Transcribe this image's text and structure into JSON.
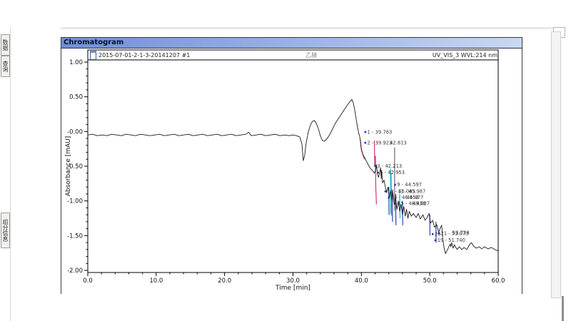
{
  "panel": {
    "title": "Chromatogram"
  },
  "sidebar": {
    "tabs": [
      {
        "label": "数据"
      },
      {
        "label": "查询"
      },
      {
        "label": "组分信息"
      }
    ]
  },
  "chart_header": {
    "injection": "2015-07-01-2-1-3-20141207 #1",
    "center_label": "乙腈",
    "channel": "UV_VIS_3 WVL:214 nm"
  },
  "chart_data": {
    "type": "line",
    "title": "Chromatogram",
    "xlabel": "Time [min]",
    "ylabel": "Absorbance [mAU]",
    "xlim": [
      0,
      60
    ],
    "ylim": [
      -2.0,
      1.0
    ],
    "grid": false,
    "x_ticks": [
      0,
      10,
      20,
      30,
      40,
      50,
      60
    ],
    "x_tick_labels": [
      "0.0",
      "10.0",
      "20.0",
      "30.0",
      "40.0",
      "50.0",
      "60.0"
    ],
    "x_minor_step": 2,
    "y_ticks": [
      1.0,
      0.5,
      0.0,
      -0.5,
      -1.0,
      -1.5,
      -2.0
    ],
    "y_tick_labels": [
      "1.00",
      "0.50",
      "-0.00",
      "-0.50",
      "-1.00",
      "-1.50",
      "-2.00"
    ],
    "y_minor_step": 0.1,
    "series": [
      {
        "name": "UV_VIS_3 WVL:214 nm",
        "color": "#1b1b1b",
        "points": [
          [
            0,
            -0.05
          ],
          [
            0.7,
            -0.04
          ],
          [
            1.4,
            -0.06
          ],
          [
            2.1,
            -0.05
          ],
          [
            2.8,
            -0.06
          ],
          [
            3.5,
            -0.04
          ],
          [
            4.2,
            -0.05
          ],
          [
            4.9,
            -0.06
          ],
          [
            5.6,
            -0.04
          ],
          [
            6.3,
            -0.05
          ],
          [
            7.0,
            -0.06
          ],
          [
            7.7,
            -0.04
          ],
          [
            8.4,
            -0.05
          ],
          [
            9.1,
            -0.06
          ],
          [
            9.8,
            -0.05
          ],
          [
            10.5,
            -0.04
          ],
          [
            11.2,
            -0.06
          ],
          [
            11.9,
            -0.05
          ],
          [
            12.6,
            -0.04
          ],
          [
            13.3,
            -0.06
          ],
          [
            14.0,
            -0.05
          ],
          [
            14.7,
            -0.04
          ],
          [
            15.4,
            -0.06
          ],
          [
            16.1,
            -0.05
          ],
          [
            16.8,
            -0.04
          ],
          [
            17.5,
            -0.06
          ],
          [
            18.2,
            -0.05
          ],
          [
            18.9,
            -0.04
          ],
          [
            19.6,
            -0.06
          ],
          [
            20.3,
            -0.05
          ],
          [
            21.0,
            -0.04
          ],
          [
            21.7,
            -0.06
          ],
          [
            22.4,
            -0.05
          ],
          [
            23.1,
            -0.04
          ],
          [
            23.5,
            -0.01
          ],
          [
            23.9,
            -0.06
          ],
          [
            24.6,
            -0.05
          ],
          [
            25.3,
            -0.04
          ],
          [
            26.0,
            -0.06
          ],
          [
            26.7,
            -0.05
          ],
          [
            27.4,
            -0.04
          ],
          [
            28.1,
            -0.06
          ],
          [
            28.8,
            -0.05
          ],
          [
            29.4,
            -0.06
          ],
          [
            30.0,
            -0.05
          ],
          [
            30.5,
            -0.06
          ],
          [
            31.0,
            -0.08
          ],
          [
            31.3,
            -0.18
          ],
          [
            31.5,
            -0.42
          ],
          [
            31.7,
            -0.35
          ],
          [
            31.9,
            -0.18
          ],
          [
            32.2,
            -0.02
          ],
          [
            32.5,
            0.08
          ],
          [
            32.8,
            0.14
          ],
          [
            33.1,
            0.16
          ],
          [
            33.4,
            0.12
          ],
          [
            33.7,
            0.04
          ],
          [
            34.0,
            -0.06
          ],
          [
            34.3,
            -0.13
          ],
          [
            34.6,
            -0.14
          ],
          [
            35.0,
            -0.1
          ],
          [
            35.4,
            -0.04
          ],
          [
            35.8,
            0.04
          ],
          [
            36.2,
            0.12
          ],
          [
            36.6,
            0.18
          ],
          [
            37.0,
            0.24
          ],
          [
            37.4,
            0.3
          ],
          [
            37.8,
            0.36
          ],
          [
            38.1,
            0.4
          ],
          [
            38.4,
            0.44
          ],
          [
            38.6,
            0.46
          ],
          [
            38.8,
            0.42
          ],
          [
            39.0,
            0.32
          ],
          [
            39.2,
            0.2
          ],
          [
            39.4,
            0.08
          ],
          [
            39.6,
            -0.02
          ],
          [
            39.763,
            -0.08
          ],
          [
            39.85,
            -0.14
          ],
          [
            39.923,
            -0.2
          ],
          [
            40.0,
            -0.26
          ],
          [
            40.2,
            -0.33
          ],
          [
            40.5,
            -0.38
          ],
          [
            40.8,
            -0.44
          ],
          [
            41.1,
            -0.5
          ],
          [
            41.4,
            -0.54
          ],
          [
            41.7,
            -0.57
          ],
          [
            41.9,
            -0.6
          ],
          [
            42.1,
            -0.55
          ],
          [
            42.213,
            -0.48
          ],
          [
            42.35,
            -0.62
          ],
          [
            42.5,
            -0.66
          ],
          [
            42.7,
            -0.58
          ],
          [
            42.813,
            -0.52
          ],
          [
            42.9,
            -0.68
          ],
          [
            42.953,
            -0.56
          ],
          [
            43.1,
            -0.74
          ],
          [
            43.3,
            -0.7
          ],
          [
            43.5,
            -0.8
          ],
          [
            43.7,
            -0.88
          ],
          [
            43.9,
            -0.8
          ],
          [
            44.1,
            -0.95
          ],
          [
            44.3,
            -0.85
          ],
          [
            44.5,
            -1.0
          ],
          [
            44.597,
            -0.88
          ],
          [
            44.8,
            -1.05
          ],
          [
            45.0,
            -0.95
          ],
          [
            45.2,
            -1.12
          ],
          [
            45.4,
            -1.0
          ],
          [
            45.6,
            -1.15
          ],
          [
            45.8,
            -1.05
          ],
          [
            46.0,
            -1.2
          ],
          [
            46.2,
            -1.08
          ],
          [
            46.4,
            -1.22
          ],
          [
            46.6,
            -1.12
          ],
          [
            46.8,
            -1.25
          ],
          [
            47.0,
            -1.15
          ],
          [
            47.3,
            -1.22
          ],
          [
            47.6,
            -1.18
          ],
          [
            48.0,
            -1.24
          ],
          [
            48.3,
            -1.18
          ],
          [
            48.6,
            -1.26
          ],
          [
            49.0,
            -1.2
          ],
          [
            49.3,
            -1.28
          ],
          [
            49.6,
            -1.24
          ],
          [
            49.9,
            -1.18
          ],
          [
            50.1,
            -1.32
          ],
          [
            50.4,
            -1.28
          ],
          [
            50.7,
            -1.38
          ],
          [
            51.0,
            -1.34
          ],
          [
            51.3,
            -1.45
          ],
          [
            51.5,
            -1.4
          ],
          [
            51.74,
            -1.35
          ],
          [
            51.9,
            -1.55
          ],
          [
            52.1,
            -1.68
          ],
          [
            52.3,
            -1.76
          ],
          [
            52.5,
            -1.72
          ],
          [
            52.7,
            -1.68
          ],
          [
            52.973,
            -1.62
          ],
          [
            53.073,
            -1.66
          ],
          [
            53.2,
            -1.6
          ],
          [
            53.4,
            -1.68
          ],
          [
            53.6,
            -1.63
          ],
          [
            53.734,
            -1.66
          ],
          [
            54.0,
            -1.7
          ],
          [
            54.3,
            -1.66
          ],
          [
            54.7,
            -1.7
          ],
          [
            55.0,
            -1.67
          ],
          [
            55.4,
            -1.7
          ],
          [
            55.8,
            -1.63
          ],
          [
            56.1,
            -1.6
          ],
          [
            56.4,
            -1.65
          ],
          [
            56.8,
            -1.68
          ],
          [
            57.2,
            -1.66
          ],
          [
            57.6,
            -1.69
          ],
          [
            58.0,
            -1.66
          ],
          [
            58.5,
            -1.69
          ],
          [
            59.0,
            -1.67
          ],
          [
            59.5,
            -1.7
          ],
          [
            60.0,
            -1.72
          ]
        ]
      }
    ],
    "highlight_segments": [
      {
        "color": "#e8389b",
        "points": [
          [
            39.85,
            -0.12
          ],
          [
            40.0,
            -0.26
          ],
          [
            40.2,
            -0.33
          ],
          [
            40.45,
            -0.4
          ]
        ]
      },
      {
        "color": "#d63384",
        "points": [
          [
            41.9,
            -0.13
          ],
          [
            41.95,
            -0.5
          ],
          [
            42.05,
            -0.35
          ],
          [
            42.1,
            -0.8
          ],
          [
            42.2,
            -1.05
          ]
        ]
      },
      {
        "color": "#19b8c8",
        "points": [
          [
            44.25,
            -0.54
          ],
          [
            44.3,
            -1.18
          ],
          [
            44.35,
            -0.6
          ],
          [
            44.4,
            -1.21
          ]
        ]
      },
      {
        "color": "#19b8c8",
        "points": [
          [
            45.6,
            -0.9
          ],
          [
            45.65,
            -1.25
          ]
        ]
      },
      {
        "color": "#3340b0",
        "points": [
          [
            44.0,
            -0.8
          ],
          [
            44.05,
            -1.2
          ]
        ]
      },
      {
        "color": "#3340b0",
        "points": [
          [
            44.5,
            -0.85
          ],
          [
            44.55,
            -1.3
          ]
        ]
      },
      {
        "color": "#3340b0",
        "points": [
          [
            45.0,
            -0.9
          ],
          [
            45.05,
            -1.35
          ]
        ]
      },
      {
        "color": "#3340b0",
        "points": [
          [
            46.0,
            -1.0
          ],
          [
            46.05,
            -1.35
          ]
        ]
      },
      {
        "color": "#3340b0",
        "points": [
          [
            50.0,
            -1.2
          ],
          [
            50.02,
            -1.5
          ]
        ]
      },
      {
        "color": "#3340b0",
        "points": [
          [
            50.9,
            -1.3
          ],
          [
            50.92,
            -1.6
          ]
        ]
      }
    ],
    "drop_lines": [
      {
        "t": 44.86,
        "v_from": -0.23,
        "v_to": -1.14
      }
    ],
    "peak_labels": [
      {
        "text": "1 - 39.763",
        "t": 40.85,
        "v": -0.03,
        "marker": true
      },
      {
        "text": "2 - 39.923",
        "t": 40.85,
        "v": -0.185,
        "marker": true
      },
      {
        "text": "42.813",
        "t": 44.15,
        "v": -0.185,
        "marker": false
      },
      {
        "text": "3 - 42.213",
        "t": 42.3,
        "v": -0.52,
        "marker": true
      },
      {
        "text": "5 - 42.953",
        "t": 42.7,
        "v": -0.615,
        "marker": true
      },
      {
        "text": "9 - 44.597",
        "t": 45.2,
        "v": -0.79,
        "marker": true
      },
      {
        "text": "10 - 45.083",
        "t": 43.8,
        "v": -0.885,
        "marker": true
      },
      {
        "text": "11 - 45.987",
        "t": 45.3,
        "v": -0.885,
        "marker": false
      },
      {
        "text": "13 - 46.453",
        "t": 44.3,
        "v": -0.975,
        "marker": true
      },
      {
        "text": "46.477",
        "t": 46.6,
        "v": -0.975,
        "marker": false
      },
      {
        "text": "15 - 48.430",
        "t": 45.3,
        "v": -1.06,
        "marker": true
      },
      {
        "text": "49.007",
        "t": 47.5,
        "v": -1.06,
        "marker": false
      },
      {
        "text": "20",
        "t": 50.7,
        "v": -1.5,
        "marker": true
      },
      {
        "text": "21 - 53.073",
        "t": 51.6,
        "v": -1.49,
        "marker": true
      },
      {
        "text": "53.734",
        "t": 53.3,
        "v": -1.48,
        "marker": false
      },
      {
        "text": "19 - 51.740",
        "t": 51.1,
        "v": -1.59,
        "marker": true
      }
    ]
  }
}
